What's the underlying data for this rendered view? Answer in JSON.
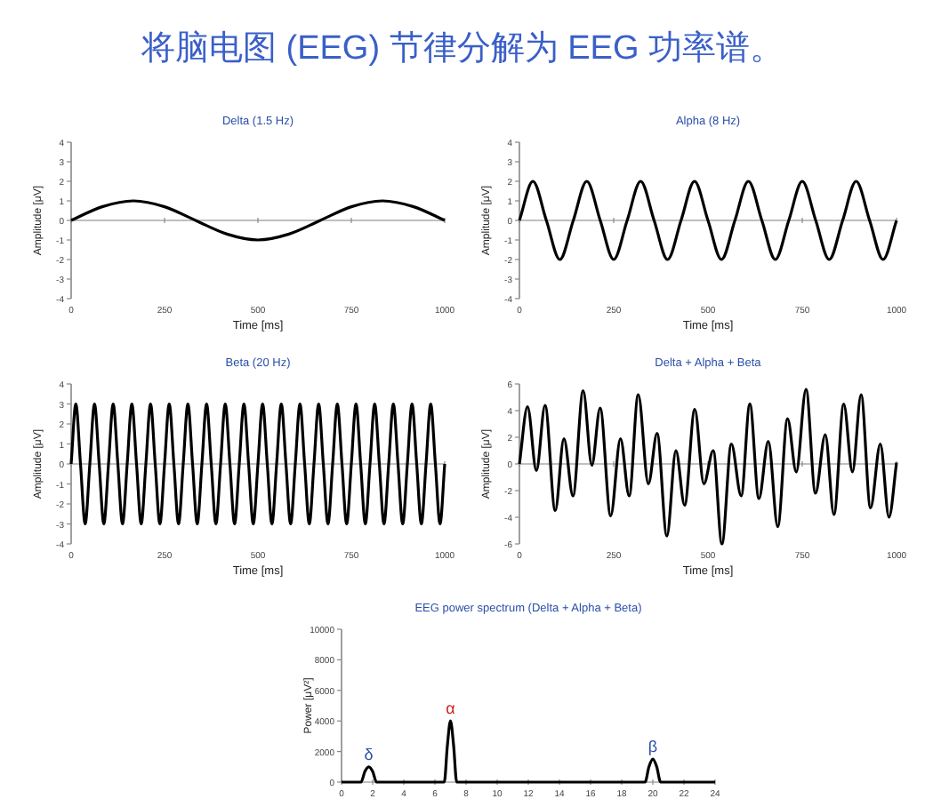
{
  "chart_data": [
    {
      "type": "other",
      "title": "将脑电图 (EEG) 节律分解为 EEG 功率谱。"
    },
    {
      "type": "line",
      "title": "Delta (1.5 Hz)",
      "xlabel": "Time [ms]",
      "ylabel": "Amplitude [μV]",
      "color": "#000000",
      "xlim": [
        0,
        1000
      ],
      "ylim": [
        -4,
        4
      ],
      "xticks": [
        0,
        250,
        500,
        750,
        1000
      ],
      "yticks": [
        -4,
        -3,
        -2,
        -1,
        0,
        1,
        2,
        3,
        4
      ],
      "x": [
        0,
        83,
        167,
        250,
        333,
        417,
        500,
        583,
        667,
        750,
        833,
        917,
        1000
      ],
      "values": [
        0,
        0.7,
        1,
        0.7,
        0,
        -0.7,
        -1,
        -0.7,
        0,
        0.7,
        1,
        0.7,
        0
      ]
    },
    {
      "type": "line",
      "title": "Alpha (8 Hz)",
      "xlabel": "Time [ms]",
      "ylabel": "Amplitude [μV]",
      "color": "#000000",
      "xlim": [
        0,
        1000
      ],
      "ylim": [
        -4,
        4
      ],
      "xticks": [
        0,
        250,
        500,
        750,
        1000
      ],
      "yticks": [
        -4,
        -3,
        -2,
        -1,
        0,
        1,
        2,
        3,
        4
      ],
      "x": [
        0,
        35.7,
        71.4,
        107.1,
        142.9,
        178.6,
        214.3,
        250,
        285.7,
        321.4,
        357.1,
        392.9,
        428.6,
        464.3,
        500,
        535.7,
        571.4,
        607.1,
        642.9,
        678.6,
        714.3,
        750,
        785.7,
        821.4,
        857.1,
        892.9,
        928.6,
        964.3,
        1000
      ],
      "values": [
        0,
        2,
        0,
        -2,
        0,
        2,
        0,
        -2,
        0,
        2,
        0,
        -2,
        0,
        2,
        0,
        -2,
        0,
        2,
        0,
        -2,
        0,
        2,
        0,
        -2,
        0,
        2,
        0,
        -2,
        0
      ]
    },
    {
      "type": "line",
      "title": "Beta (20 Hz)",
      "xlabel": "Time [ms]",
      "ylabel": "Amplitude [μV]",
      "color": "#000000",
      "xlim": [
        0,
        1000
      ],
      "ylim": [
        -4,
        4
      ],
      "xticks": [
        0,
        250,
        500,
        750,
        1000
      ],
      "yticks": [
        -4,
        -3,
        -2,
        -1,
        0,
        1,
        2,
        3,
        4
      ],
      "x": [
        0,
        12.5,
        25,
        37.5,
        50,
        62.5,
        75,
        87.5,
        100,
        112.5,
        125,
        137.5,
        150,
        162.5,
        175,
        187.5,
        200,
        212.5,
        225,
        237.5,
        250,
        262.5,
        275,
        287.5,
        300,
        312.5,
        325,
        337.5,
        350,
        362.5,
        375,
        387.5,
        400,
        412.5,
        425,
        437.5,
        450,
        462.5,
        475,
        487.5,
        500,
        512.5,
        525,
        537.5,
        550,
        562.5,
        575,
        587.5,
        600,
        612.5,
        625,
        637.5,
        650,
        662.5,
        675,
        687.5,
        700,
        712.5,
        725,
        737.5,
        750,
        762.5,
        775,
        787.5,
        800,
        812.5,
        825,
        837.5,
        850,
        862.5,
        875,
        887.5,
        900,
        912.5,
        925,
        937.5,
        950,
        962.5,
        975,
        987.5,
        1000
      ],
      "values": [
        0,
        3,
        0,
        -3,
        0,
        3,
        0,
        -3,
        0,
        3,
        0,
        -3,
        0,
        3,
        0,
        -3,
        0,
        3,
        0,
        -3,
        0,
        3,
        0,
        -3,
        0,
        3,
        0,
        -3,
        0,
        3,
        0,
        -3,
        0,
        3,
        0,
        -3,
        0,
        3,
        0,
        -3,
        0,
        3,
        0,
        -3,
        0,
        3,
        0,
        -3,
        0,
        3,
        0,
        -3,
        0,
        3,
        0,
        -3,
        0,
        3,
        0,
        -3,
        0,
        3,
        0,
        -3,
        0,
        3,
        0,
        -3,
        0,
        3,
        0,
        -3,
        0,
        3,
        0,
        -3,
        0,
        3,
        0,
        -3,
        0
      ]
    },
    {
      "type": "line",
      "title": "Delta + Alpha + Beta",
      "xlabel": "Time [ms]",
      "ylabel": "Amplitude [μV]",
      "color": "#000000",
      "xlim": [
        0,
        1000
      ],
      "ylim": [
        -6,
        6
      ],
      "xticks": [
        0,
        250,
        500,
        750,
        1000
      ],
      "yticks": [
        -6,
        -4,
        -2,
        0,
        2,
        4,
        6
      ],
      "x": [
        0,
        21.5,
        45,
        68,
        95,
        118,
        142,
        169,
        192,
        214,
        242,
        268,
        291,
        315,
        342,
        365,
        391,
        415,
        438,
        465,
        489,
        514,
        537,
        562,
        588,
        611,
        635,
        660,
        685,
        711,
        734,
        760,
        785,
        811,
        834,
        860,
        883,
        906,
        931,
        957,
        980,
        1000
      ],
      "values": [
        0,
        4.3,
        -0.5,
        4.4,
        -3.5,
        1.9,
        -2.4,
        5.5,
        -0.1,
        4.2,
        -3.9,
        1.9,
        -2.4,
        5.2,
        -1.5,
        2.3,
        -5.4,
        1.0,
        -3.1,
        4.1,
        -1.5,
        1.0,
        -6.0,
        1.5,
        -2.4,
        4.5,
        -2.6,
        1.7,
        -4.7,
        3.4,
        -0.6,
        5.6,
        -2.2,
        2.2,
        -3.8,
        4.5,
        -0.6,
        5.2,
        -3.3,
        1.5,
        -4.0,
        0.1
      ]
    },
    {
      "type": "line",
      "title": "EEG power spectrum (Delta + Alpha + Beta)",
      "ylabel": "Power [μV²]",
      "color": "#000000",
      "xlim": [
        0,
        24
      ],
      "ylim": [
        0,
        10000
      ],
      "xticks": [
        0,
        2,
        4,
        6,
        8,
        10,
        12,
        14,
        16,
        18,
        20,
        22,
        24
      ],
      "yticks": [
        0,
        2000,
        4000,
        6000,
        8000,
        10000
      ],
      "x": [
        0,
        1.25,
        1.5,
        1.75,
        2.0,
        2.25,
        6.6,
        6.8,
        7.0,
        7.2,
        7.4,
        19.5,
        19.75,
        20,
        20.25,
        20.5,
        24
      ],
      "values": [
        0,
        0,
        700,
        1000,
        700,
        0,
        0,
        2400,
        4000,
        2400,
        0,
        0,
        1000,
        1500,
        1000,
        0,
        0
      ],
      "annotations": [
        {
          "text": "δ",
          "x": 1.75,
          "y": 1000
        },
        {
          "text": "α",
          "x": 7.0,
          "y": 4000
        },
        {
          "text": "β",
          "x": 20,
          "y": 1500
        }
      ]
    }
  ]
}
